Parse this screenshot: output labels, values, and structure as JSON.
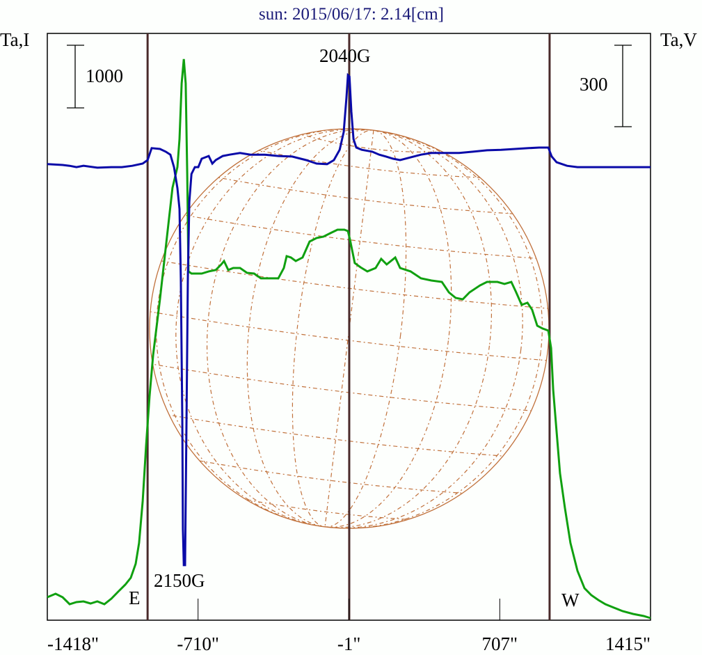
{
  "chart_data": {
    "type": "line",
    "title": "sun: 2015/06/17: 2.14[cm]",
    "ylabel_left": "Ta,I",
    "ylabel_right": "Ta,V",
    "xlabel": "",
    "xlim": [
      -1418,
      1415
    ],
    "x_ticks": [
      {
        "value": -1418,
        "label": "-1418\""
      },
      {
        "value": -710,
        "label": "-710\""
      },
      {
        "value": -1,
        "label": "-1\""
      },
      {
        "value": 707,
        "label": "707\""
      },
      {
        "value": 1415,
        "label": "1415\""
      }
    ],
    "limb_markers": [
      -947,
      0,
      941
    ],
    "scale_bars": {
      "I": {
        "value": 1000,
        "label": "1000"
      },
      "V": {
        "value": 300,
        "label": "300"
      }
    },
    "annotations": {
      "peak_north": "2040G",
      "peak_south": "2150G",
      "east": "E",
      "west": "W"
    },
    "colors": {
      "I": "#10a010",
      "V": "#0a0aa8",
      "markers": "#4a2a2a",
      "grid": "#c0703a",
      "title": "#1a1a78"
    },
    "series": [
      {
        "name": "I",
        "unit": "K",
        "x": [
          -1418,
          -1379,
          -1346,
          -1313,
          -1281,
          -1248,
          -1215,
          -1183,
          -1150,
          -1117,
          -1085,
          -1052,
          -1026,
          -1003,
          -987,
          -970,
          -954,
          -938,
          -921,
          -889,
          -856,
          -830,
          -807,
          -797,
          -787,
          -777,
          -768,
          -761,
          -755,
          -741,
          -693,
          -660,
          -627,
          -601,
          -588,
          -568,
          -545,
          -513,
          -480,
          -447,
          -415,
          -333,
          -307,
          -294,
          -274,
          -251,
          -219,
          -186,
          -153,
          -121,
          -88,
          -55,
          -23,
          -6,
          4,
          26,
          53,
          85,
          124,
          150,
          176,
          216,
          239,
          288,
          337,
          386,
          435,
          468,
          500,
          533,
          565,
          614,
          647,
          696,
          729,
          761,
          784,
          810,
          837,
          859,
          883,
          908,
          935,
          948,
          958,
          974,
          990,
          1013,
          1039,
          1072,
          1105,
          1137,
          1170,
          1203,
          1235,
          1284,
          1333,
          1383,
          1415
        ],
        "y": [
          367,
          422,
          367,
          256,
          289,
          300,
          267,
          300,
          256,
          344,
          456,
          567,
          678,
          900,
          1233,
          1900,
          2789,
          3567,
          4233,
          5122,
          6122,
          6900,
          7233,
          7678,
          8567,
          8956,
          8567,
          7122,
          5567,
          5533,
          5533,
          5567,
          5589,
          5678,
          5733,
          5589,
          5622,
          5622,
          5544,
          5533,
          5456,
          5456,
          5622,
          5811,
          5789,
          5733,
          5789,
          6044,
          6100,
          6122,
          6178,
          6233,
          6233,
          6211,
          6066,
          5700,
          5633,
          5567,
          5622,
          5767,
          5678,
          5789,
          5622,
          5567,
          5456,
          5422,
          5400,
          5233,
          5144,
          5122,
          5233,
          5344,
          5400,
          5400,
          5367,
          5400,
          5233,
          5033,
          5067,
          4956,
          4700,
          4656,
          4622,
          4344,
          3678,
          3011,
          2344,
          1789,
          1233,
          789,
          511,
          400,
          322,
          256,
          211,
          144,
          100,
          67,
          33
        ]
      },
      {
        "name": "V",
        "unit": "K",
        "x": [
          -1418,
          -1346,
          -1313,
          -1281,
          -1248,
          -1183,
          -1117,
          -1068,
          -1019,
          -970,
          -947,
          -928,
          -889,
          -862,
          -840,
          -823,
          -807,
          -797,
          -791,
          -784,
          -781,
          -777,
          -771,
          -764,
          -758,
          -751,
          -741,
          -725,
          -709,
          -693,
          -660,
          -643,
          -627,
          -594,
          -562,
          -513,
          -464,
          -398,
          -333,
          -268,
          -202,
          -153,
          -104,
          -72,
          -45,
          -26,
          -13,
          -6,
          1,
          10,
          20,
          33,
          59,
          108,
          141,
          173,
          206,
          239,
          288,
          337,
          386,
          451,
          516,
          582,
          647,
          713,
          778,
          843,
          892,
          935,
          951,
          974,
          1023,
          1072,
          1235,
          1415
        ],
        "y": [
          3,
          0,
          -3,
          -8,
          -3,
          -10,
          -8,
          -8,
          -3,
          5,
          18,
          62,
          59,
          49,
          38,
          -8,
          -85,
          -162,
          -418,
          -931,
          -1341,
          -1474,
          -1474,
          -931,
          -418,
          -136,
          -33,
          -8,
          -8,
          23,
          33,
          5,
          18,
          33,
          38,
          44,
          38,
          38,
          33,
          31,
          18,
          5,
          3,
          18,
          56,
          121,
          249,
          331,
          326,
          197,
          95,
          64,
          56,
          49,
          38,
          31,
          23,
          18,
          28,
          38,
          44,
          44,
          44,
          49,
          54,
          56,
          59,
          62,
          64,
          64,
          31,
          10,
          -3,
          -8,
          -8,
          -8
        ]
      }
    ]
  }
}
